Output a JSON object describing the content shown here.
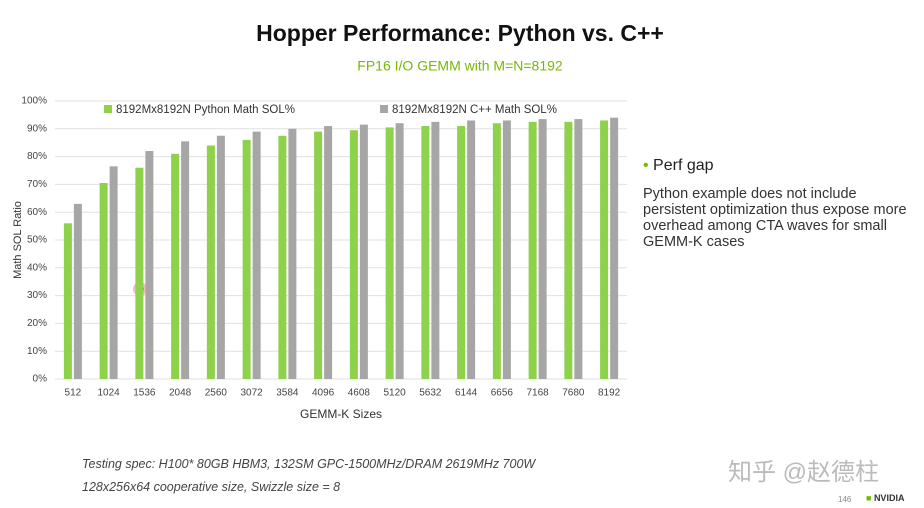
{
  "chart_data": {
    "type": "bar",
    "title": "Hopper Performance: Python vs. C++",
    "subtitle": "FP16 I/O GEMM with M=N=8192",
    "x_label": "GEMM-K Sizes",
    "y_label": "Math SOL Ratio",
    "categories": [
      "512",
      "1024",
      "1536",
      "2048",
      "2560",
      "3072",
      "3584",
      "4096",
      "4608",
      "5120",
      "5632",
      "6144",
      "6656",
      "7168",
      "7680",
      "8192"
    ],
    "series": [
      {
        "name": "8192Mx8192N Python Math SOL%",
        "color": "#8ed14b",
        "values": [
          56,
          70.5,
          76,
          81,
          84,
          86,
          87.5,
          89,
          89.5,
          90.5,
          91,
          91,
          92,
          92.5,
          92.5,
          93
        ]
      },
      {
        "name": "8192Mx8192N C++ Math SOL%",
        "color": "#a6a6a6",
        "values": [
          63,
          76.5,
          82,
          85.5,
          87.5,
          89,
          90,
          91,
          91.5,
          92,
          92.5,
          93,
          93,
          93.5,
          93.5,
          94
        ]
      }
    ],
    "ylim": [
      0,
      100
    ],
    "yticks": [
      {
        "value": 0,
        "label": "0%"
      },
      {
        "value": 10,
        "label": "10%"
      },
      {
        "value": 20,
        "label": "20%"
      },
      {
        "value": 30,
        "label": "30%"
      },
      {
        "value": 40,
        "label": "40%"
      },
      {
        "value": 50,
        "label": "50%"
      },
      {
        "value": 60,
        "label": "60%"
      },
      {
        "value": 70,
        "label": "70%"
      },
      {
        "value": 80,
        "label": "80%"
      },
      {
        "value": 90,
        "label": "90%"
      },
      {
        "value": 100,
        "label": "100%"
      }
    ],
    "grid": true,
    "legend": "top"
  },
  "slide": {
    "bullet": "Perf gap",
    "paragraph": "Python example does not include persistent optimization thus expose more overhead among CTA waves for small GEMM-K cases",
    "notes": [
      "Testing spec: H100* 80GB HBM3, 132SM GPC-1500MHz/DRAM 2619MHz 700W",
      "128x256x64 cooperative size, Swizzle size = 8"
    ],
    "watermark": "知乎 @赵德柱",
    "page_number": "146",
    "logo": "NVIDIA"
  }
}
